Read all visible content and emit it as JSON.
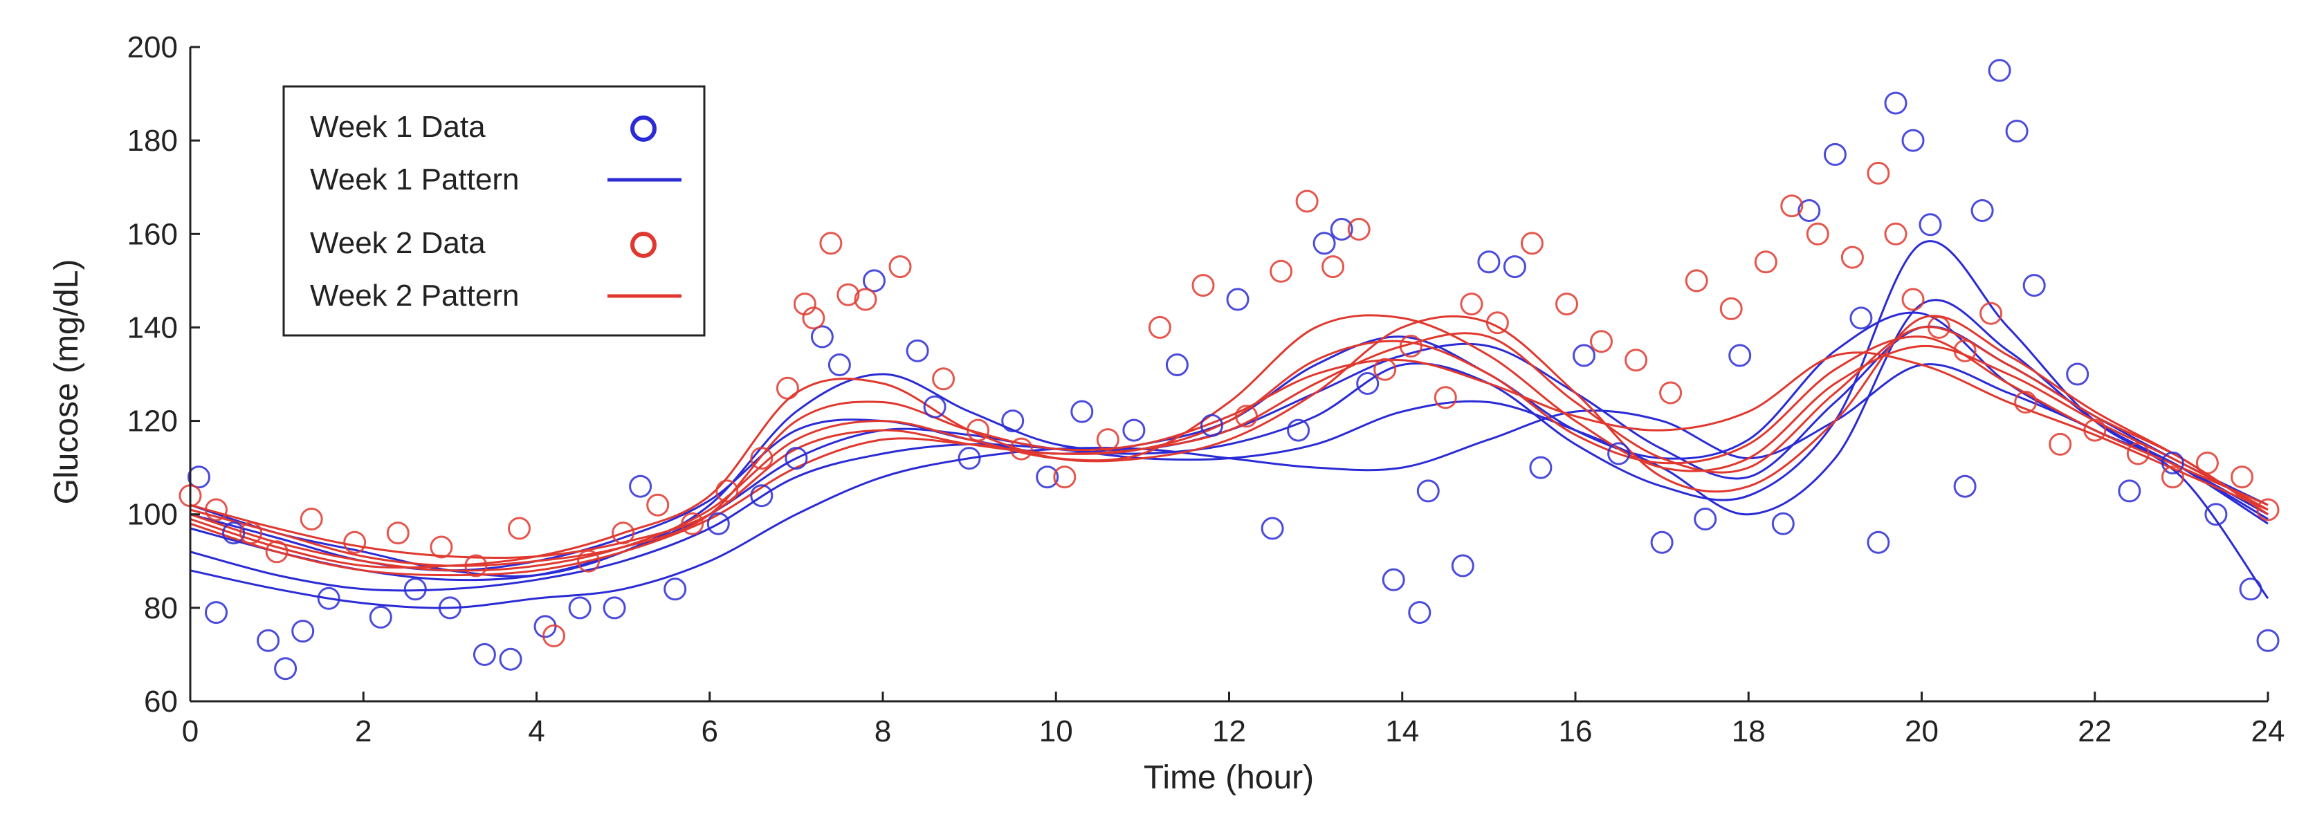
{
  "chart_data": {
    "type": "scatter",
    "title": "",
    "xlabel": "Time (hour)",
    "ylabel": "Glucose (mg/dL)",
    "xlim": [
      0,
      24
    ],
    "ylim": [
      60,
      200
    ],
    "xticks": [
      0,
      2,
      4,
      6,
      8,
      10,
      12,
      14,
      16,
      18,
      20,
      22,
      24
    ],
    "yticks": [
      60,
      80,
      100,
      120,
      140,
      160,
      180,
      200
    ],
    "grid": false,
    "legend_position": "top-left",
    "legend": [
      {
        "label": "Week 1 Data",
        "kind": "marker",
        "color": "#2b2bd6"
      },
      {
        "label": "Week 1 Pattern",
        "kind": "line",
        "color": "#2b2bd6"
      },
      {
        "label": "Week 2 Data",
        "kind": "marker",
        "color": "#e0382e"
      },
      {
        "label": "Week 2 Pattern",
        "kind": "line",
        "color": "#e0382e"
      }
    ],
    "colors": {
      "week1": "#2b2bd6",
      "week2": "#e0382e"
    },
    "week1_patterns": [
      {
        "x": [
          0,
          1,
          2,
          3,
          4,
          5,
          6,
          7,
          8,
          9,
          10,
          11,
          12,
          13,
          14,
          15,
          16,
          17,
          18,
          19,
          20,
          21,
          22,
          23,
          24
        ],
        "y": [
          100,
          95,
          90,
          88,
          90,
          95,
          103,
          118,
          120,
          116,
          113,
          115,
          120,
          132,
          138,
          130,
          118,
          112,
          116,
          135,
          143,
          128,
          118,
          110,
          100
        ]
      },
      {
        "x": [
          0,
          1,
          2,
          3,
          4,
          5,
          6,
          7,
          8,
          9,
          10,
          11,
          12,
          13,
          14,
          15,
          16,
          17,
          18,
          19,
          20,
          21,
          22,
          23,
          24
        ],
        "y": [
          97,
          92,
          88,
          86,
          87,
          92,
          100,
          112,
          118,
          117,
          114,
          113,
          115,
          121,
          132,
          128,
          115,
          106,
          104,
          120,
          158,
          140,
          120,
          110,
          98
        ]
      },
      {
        "x": [
          0,
          1,
          2,
          3,
          4,
          5,
          6,
          7,
          8,
          9,
          10,
          11,
          12,
          13,
          14,
          15,
          16,
          17,
          18,
          19,
          20,
          21,
          22,
          23,
          24
        ],
        "y": [
          92,
          87,
          84,
          84,
          86,
          90,
          97,
          108,
          113,
          115,
          114,
          112,
          112,
          115,
          122,
          124,
          118,
          110,
          100,
          112,
          145,
          135,
          120,
          110,
          99
        ]
      },
      {
        "x": [
          0,
          1,
          2,
          3,
          4,
          5,
          6,
          7,
          8,
          9,
          10,
          11,
          12,
          13,
          14,
          15,
          16,
          17,
          18,
          19,
          20,
          21,
          22,
          23,
          24
        ],
        "y": [
          88,
          84,
          81,
          80,
          82,
          84,
          90,
          100,
          108,
          112,
          114,
          114,
          112,
          110,
          110,
          116,
          122,
          120,
          112,
          120,
          132,
          126,
          118,
          108,
          82
        ]
      },
      {
        "x": [
          0,
          1,
          2,
          3,
          4,
          5,
          6,
          7,
          8,
          9,
          10,
          11,
          12,
          13,
          14,
          15,
          16,
          17,
          18,
          19,
          20,
          21,
          22,
          23,
          24
        ],
        "y": [
          102,
          96,
          92,
          88,
          87,
          92,
          102,
          122,
          130,
          122,
          115,
          114,
          118,
          126,
          134,
          136,
          126,
          114,
          108,
          124,
          140,
          132,
          121,
          111,
          102
        ]
      }
    ],
    "week2_patterns": [
      {
        "x": [
          0,
          1,
          2,
          3,
          4,
          5,
          6,
          7,
          8,
          9,
          10,
          11,
          12,
          13,
          14,
          15,
          16,
          17,
          18,
          19,
          20,
          21,
          22,
          23,
          24
        ],
        "y": [
          102,
          97,
          93,
          91,
          91,
          94,
          100,
          114,
          118,
          115,
          113,
          114,
          120,
          133,
          137,
          130,
          117,
          111,
          115,
          131,
          138,
          128,
          118,
          110,
          102
        ]
      },
      {
        "x": [
          0,
          1,
          2,
          3,
          4,
          5,
          6,
          7,
          8,
          9,
          10,
          11,
          12,
          13,
          14,
          15,
          16,
          17,
          18,
          19,
          20,
          21,
          22,
          23,
          24
        ],
        "y": [
          100,
          94,
          90,
          88,
          89,
          93,
          101,
          116,
          120,
          116,
          112,
          113,
          124,
          140,
          142,
          134,
          120,
          110,
          112,
          128,
          136,
          130,
          120,
          111,
          101
        ]
      },
      {
        "x": [
          0,
          1,
          2,
          3,
          4,
          5,
          6,
          7,
          8,
          9,
          10,
          11,
          12,
          13,
          14,
          15,
          16,
          17,
          18,
          19,
          20,
          21,
          22,
          23,
          24
        ],
        "y": [
          98,
          92,
          88,
          87,
          88,
          92,
          99,
          110,
          116,
          115,
          113,
          114,
          118,
          128,
          136,
          138,
          124,
          112,
          110,
          126,
          140,
          132,
          121,
          112,
          100
        ]
      },
      {
        "x": [
          0,
          1,
          2,
          3,
          4,
          5,
          6,
          7,
          8,
          9,
          10,
          11,
          12,
          13,
          14,
          15,
          16,
          17,
          18,
          19,
          20,
          21,
          22,
          23,
          24
        ],
        "y": [
          101,
          96,
          91,
          89,
          90,
          93,
          100,
          120,
          124,
          118,
          114,
          115,
          121,
          130,
          133,
          128,
          121,
          118,
          122,
          134,
          132,
          124,
          117,
          109,
          101
        ]
      },
      {
        "x": [
          0,
          1,
          2,
          3,
          4,
          5,
          6,
          7,
          8,
          9,
          10,
          11,
          12,
          13,
          14,
          15,
          16,
          17,
          18,
          19,
          20,
          21,
          22,
          23,
          24
        ],
        "y": [
          99,
          93,
          89,
          89,
          91,
          96,
          104,
          126,
          128,
          118,
          112,
          112,
          116,
          126,
          140,
          141,
          126,
          108,
          106,
          120,
          142,
          134,
          122,
          112,
          100
        ]
      }
    ],
    "week1_points": {
      "x": [
        0.1,
        0.3,
        0.5,
        0.9,
        1.1,
        1.3,
        1.6,
        2.2,
        2.6,
        3.0,
        3.4,
        3.7,
        4.1,
        4.5,
        4.9,
        5.2,
        5.6,
        6.1,
        6.6,
        7.0,
        7.3,
        7.5,
        7.9,
        8.4,
        8.6,
        9.0,
        9.5,
        9.9,
        10.3,
        10.9,
        11.4,
        11.8,
        12.1,
        12.5,
        12.8,
        13.1,
        13.3,
        13.6,
        13.9,
        14.2,
        14.3,
        14.7,
        15.0,
        15.3,
        15.6,
        16.1,
        16.5,
        17.0,
        17.5,
        17.9,
        18.4,
        18.7,
        19.0,
        19.3,
        19.5,
        19.7,
        19.9,
        20.1,
        20.5,
        20.7,
        20.9,
        21.1,
        21.3,
        21.8,
        22.4,
        22.9,
        23.4,
        23.8,
        24.0
      ],
      "y": [
        108,
        79,
        96,
        73,
        67,
        75,
        82,
        78,
        84,
        80,
        70,
        69,
        76,
        80,
        80,
        106,
        84,
        98,
        104,
        112,
        138,
        132,
        150,
        135,
        123,
        112,
        120,
        108,
        122,
        118,
        132,
        119,
        146,
        97,
        118,
        158,
        161,
        128,
        86,
        79,
        105,
        89,
        154,
        153,
        110,
        134,
        113,
        94,
        99,
        134,
        98,
        165,
        177,
        142,
        94,
        188,
        180,
        162,
        106,
        165,
        195,
        182,
        149,
        130,
        105,
        111,
        100,
        84,
        73
      ]
    },
    "week2_points": {
      "x": [
        0.0,
        0.3,
        0.7,
        1.0,
        1.4,
        1.9,
        2.4,
        2.9,
        3.3,
        3.8,
        4.2,
        4.6,
        5.0,
        5.4,
        5.8,
        6.2,
        6.6,
        6.9,
        7.1,
        7.2,
        7.4,
        7.6,
        7.8,
        8.2,
        8.7,
        9.1,
        9.6,
        10.1,
        10.6,
        11.2,
        11.7,
        12.2,
        12.6,
        12.9,
        13.2,
        13.5,
        13.8,
        14.1,
        14.5,
        14.8,
        15.1,
        15.5,
        15.9,
        16.3,
        16.7,
        17.1,
        17.4,
        17.8,
        18.2,
        18.5,
        18.8,
        19.2,
        19.5,
        19.7,
        19.9,
        20.2,
        20.5,
        20.8,
        21.2,
        21.6,
        22.0,
        22.5,
        22.9,
        23.3,
        23.7,
        24.0
      ],
      "y": [
        104,
        101,
        96,
        92,
        99,
        94,
        96,
        93,
        89,
        97,
        74,
        90,
        96,
        102,
        98,
        105,
        112,
        127,
        145,
        142,
        158,
        147,
        146,
        153,
        129,
        118,
        114,
        108,
        116,
        140,
        149,
        121,
        152,
        167,
        153,
        161,
        131,
        136,
        125,
        145,
        141,
        158,
        145,
        137,
        133,
        126,
        150,
        144,
        154,
        166,
        160,
        155,
        173,
        160,
        146,
        140,
        135,
        143,
        124,
        115,
        118,
        113,
        108,
        111,
        108,
        101
      ]
    }
  }
}
